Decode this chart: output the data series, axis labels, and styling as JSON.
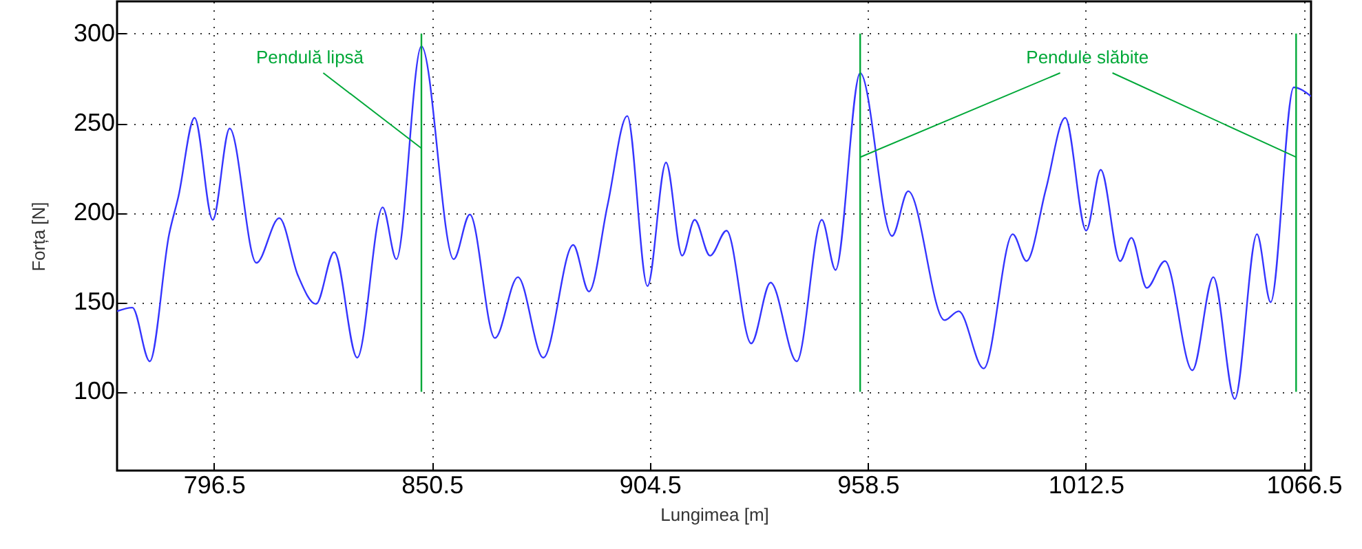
{
  "chart_data": {
    "type": "line",
    "xlabel": "Lungimea [m]",
    "ylabel": "Forța [N]",
    "x": [
      772.5,
      776.3,
      780.6,
      785.4,
      787.7,
      791.7,
      796.2,
      800.4,
      807.0,
      812.7,
      817.3,
      821.8,
      826.3,
      832.0,
      838.3,
      841.7,
      847.9,
      855.9,
      859.9,
      866.1,
      871.8,
      878.1,
      885.5,
      889.4,
      894.0,
      898.9,
      903.9,
      908.5,
      912.5,
      915.6,
      919.4,
      923.5,
      929.6,
      934.4,
      940.9,
      947.1,
      950.5,
      956.6,
      964.5,
      968.5,
      977.5,
      981.0,
      987.2,
      994.4,
      997.8,
      1002.6,
      1007.4,
      1012.6,
      1016.2,
      1021.0,
      1023.8,
      1027.6,
      1032.1,
      1038.9,
      1044.1,
      1049.4,
      1054.9,
      1058.3,
      1064.0,
      1068.3
    ],
    "series": [
      {
        "color": "#3535ff",
        "values": [
          145,
          147,
          117,
          188,
          209,
          253,
          196,
          247,
          172,
          197,
          165,
          149,
          178,
          119,
          203,
          174,
          293,
          174,
          199,
          130,
          164,
          119,
          182,
          156,
          204,
          254,
          159,
          228,
          176,
          196,
          176,
          190,
          127,
          161,
          117,
          196,
          168,
          278,
          187,
          212,
          140,
          145,
          113,
          188,
          173,
          213,
          253,
          190,
          224,
          173,
          186,
          158,
          173,
          112,
          164,
          96,
          188,
          150,
          270,
          265
        ]
      }
    ],
    "xlim": [
      772.5,
      1068.3
    ],
    "ylim": [
      56,
      318
    ],
    "xticks": [
      796.5,
      850.5,
      904.5,
      958.5,
      1012.5,
      1066.5
    ],
    "yticks": [
      100,
      150,
      200,
      250,
      300
    ],
    "grid": true,
    "ref_lines": [
      {
        "axis": "x",
        "value": 847.9,
        "color": "#00a838"
      },
      {
        "axis": "x",
        "value": 956.6,
        "color": "#00a838"
      },
      {
        "axis": "x",
        "value": 1064.6,
        "color": "#00a838"
      }
    ],
    "annotations": [
      {
        "text": "Pendulă lipsă",
        "x": 847.9,
        "y": 236
      },
      {
        "text": "Pendule slăbite",
        "x": 956.6,
        "y": 231
      }
    ]
  }
}
